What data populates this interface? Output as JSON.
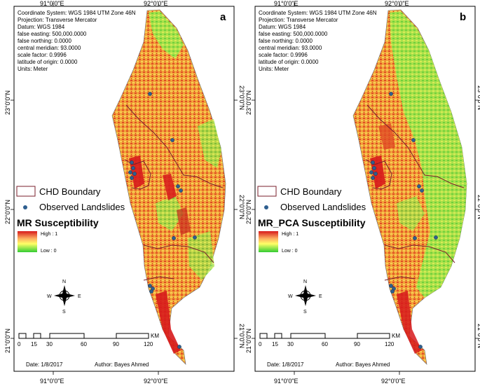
{
  "panels": [
    {
      "letter": "a",
      "susceptibility_title": "MR Susceptibility",
      "legend_high": "High : 1",
      "legend_low": "Low : 0",
      "green_bias": 0
    },
    {
      "letter": "b",
      "susceptibility_title": "MR_PCA Susceptibility",
      "legend_high": "High : 1",
      "legend_low": "Low : 0",
      "green_bias": 1
    }
  ],
  "projection_info": [
    "Coordinate System: WGS 1984 UTM Zone 46N",
    "Projection: Transverse Mercator",
    "Datum: WGS 1984",
    "false easting: 500,000.0000",
    "false northing: 0.0000",
    "central meridian: 93.0000",
    "scale factor: 0.9996",
    "latitude of origin: 0.0000",
    "Units: Meter"
  ],
  "graticule": {
    "top_left": "91°0'0\"E",
    "top_right": "92°0'0\"E",
    "bottom_left": "91°0'0\"E",
    "bottom_right": "92°0'0\"E",
    "lat_labels": [
      "23°0'0\"N",
      "22°0'0\"N",
      "21°0'0\"N"
    ]
  },
  "legend": {
    "boundary_label": "CHD Boundary",
    "landslides_label": "Observed Landslides"
  },
  "north_arrow": {
    "n": "N",
    "s": "S",
    "e": "E",
    "w": "W"
  },
  "scale_bar": {
    "ticks": [
      "0",
      "15",
      "30",
      "60",
      "90",
      "120"
    ],
    "unit": "KM"
  },
  "footer": {
    "date": "Date: 1/8/2017",
    "author": "Author: Bayes Ahmed"
  },
  "colors": {
    "high": "#d7191c",
    "mid": "#fdae61",
    "mid2": "#ffff66",
    "low": "#33cc33",
    "point": "#2f5f8f",
    "boundary": "#7a1f2b"
  }
}
